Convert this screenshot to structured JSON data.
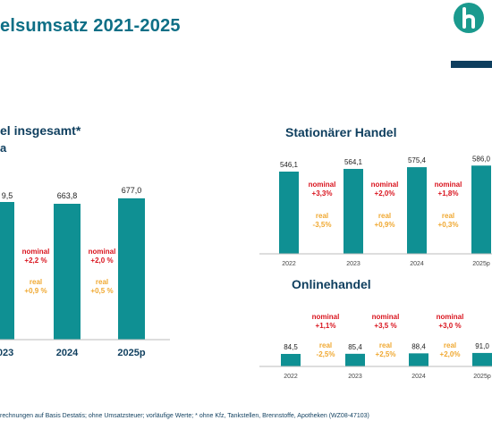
{
  "header": {
    "title": "elsumsatz 2021-2025"
  },
  "charts": {
    "left_title": "el insgesamt*",
    "left_subtitle": "a",
    "stat_title": "Stationärer Handel",
    "online_title": "Onlinehandel"
  },
  "footnote": "rechnungen auf Basis Destatis; ohne Umsatzsteuer; vorläufige Werte; * ohne Kfz, Tankstellen, Brennstoffe, Apotheken (WZ08-47103)",
  "colors": {
    "bar": "#0f9093",
    "nominal": "#d9141e",
    "real": "#f0a830",
    "title": "#0e6f86",
    "dark_blue": "#0e3e5e"
  },
  "chart_data": [
    {
      "type": "bar",
      "name_label": "el insgesamt*",
      "categories": [
        "023",
        "2024",
        "2025p"
      ],
      "values": [
        null,
        663.8,
        677.0
      ],
      "value_labels": [
        "9,5",
        "663,8",
        "677,0"
      ],
      "changes": [
        {
          "nominal": "nominal\n+2,2 %",
          "real": "real\n+0,9 %"
        },
        {
          "nominal": "nominal\n+2,0 %",
          "real": "real\n+0,5 %"
        }
      ]
    },
    {
      "type": "bar",
      "title": "Stationärer Handel",
      "categories": [
        "2022",
        "2023",
        "2024",
        "2025p"
      ],
      "values": [
        546.1,
        564.1,
        575.4,
        586.0
      ],
      "value_labels": [
        "546,1",
        "564,1",
        "575,4",
        "586,0"
      ],
      "changes": [
        {
          "nominal": "nominal\n+3,3%",
          "real": "real\n-3,5%"
        },
        {
          "nominal": "nominal\n+2,0%",
          "real": "real\n+0,9%"
        },
        {
          "nominal": "nominal\n+1,8%",
          "real": "real\n+0,3%"
        }
      ]
    },
    {
      "type": "bar",
      "title": "Onlinehandel",
      "categories": [
        "2022",
        "2023",
        "2024",
        "2025p"
      ],
      "values": [
        84.5,
        85.4,
        88.4,
        91.0
      ],
      "value_labels": [
        "84,5",
        "85,4",
        "88,4",
        "91,0"
      ],
      "changes": [
        {
          "nominal": "nominal\n+1,1%",
          "real": "real\n-2,5%"
        },
        {
          "nominal": "nominal\n+3,5 %",
          "real": "real\n+2,5%"
        },
        {
          "nominal": "nominal\n+3,0 %",
          "real": "real\n+2,0%"
        }
      ]
    }
  ]
}
